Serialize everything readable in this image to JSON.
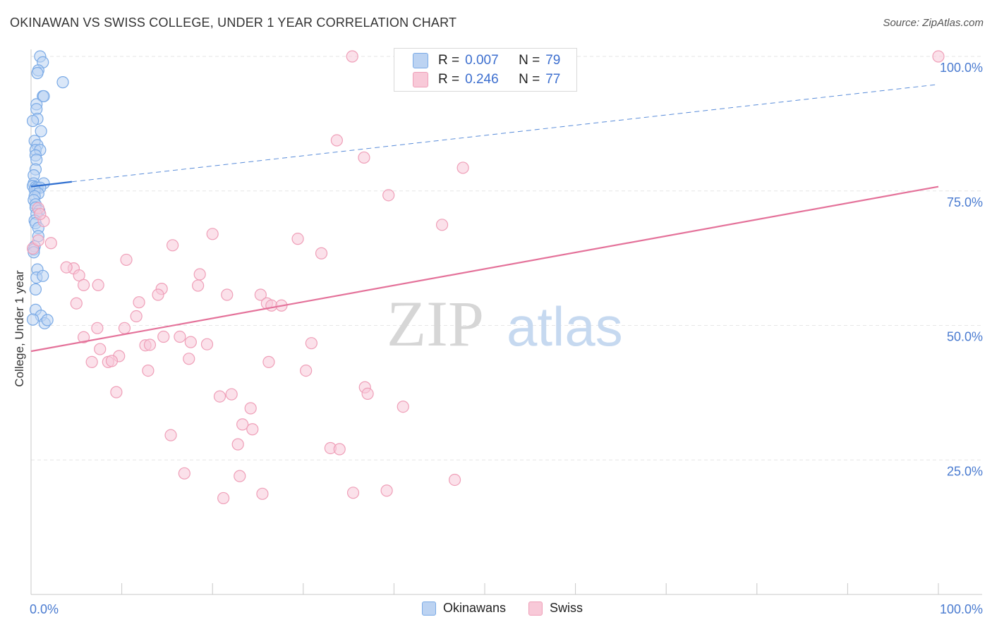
{
  "title": "OKINAWAN VS SWISS COLLEGE, UNDER 1 YEAR CORRELATION CHART",
  "source": "Source: ZipAtlas.com",
  "watermark": {
    "zip": "ZIP",
    "atlas": "atlas"
  },
  "legend": {
    "r_label": "R =",
    "n_label": "N =",
    "series": [
      {
        "name": "Okinawans",
        "r": "0.007",
        "n": "79",
        "color": "#7aaae6",
        "fill": "#bcd3f2"
      },
      {
        "name": "Swiss",
        "r": "0.246",
        "n": "77",
        "color": "#ef9fb8",
        "fill": "#f8c9d8"
      }
    ]
  },
  "chart_data": {
    "type": "scatter",
    "title": "OKINAWAN VS SWISS COLLEGE, UNDER 1 YEAR CORRELATION CHART",
    "xlabel": "",
    "ylabel": "College, Under 1 year",
    "xlim": [
      0,
      100
    ],
    "ylim": [
      0,
      100
    ],
    "x_tick_labels": [
      "0.0%",
      "100.0%"
    ],
    "y_tick_labels": [
      "100.0%",
      "75.0%",
      "50.0%",
      "25.0%"
    ],
    "y_ticks": [
      100,
      75,
      50,
      25
    ],
    "grid": true,
    "series": [
      {
        "name": "Okinawans",
        "color": "#5b8fd9",
        "trend": {
          "x": [
            0,
            4.5
          ],
          "y": [
            75.8,
            76.7
          ],
          "extended_to": [
            100,
            94.8
          ],
          "style": "solid-then-dashed",
          "color": "#2f6fd0"
        },
        "points": [
          [
            1.0,
            100.0
          ],
          [
            1.3,
            98.9
          ],
          [
            0.8,
            97.4
          ],
          [
            0.7,
            96.9
          ],
          [
            3.5,
            95.2
          ],
          [
            1.3,
            92.6
          ],
          [
            1.4,
            92.6
          ],
          [
            0.6,
            91.1
          ],
          [
            0.6,
            90.2
          ],
          [
            0.7,
            88.4
          ],
          [
            0.2,
            88.0
          ],
          [
            1.1,
            86.1
          ],
          [
            0.4,
            84.3
          ],
          [
            0.7,
            83.5
          ],
          [
            0.5,
            82.6
          ],
          [
            1.0,
            82.6
          ],
          [
            0.5,
            81.6
          ],
          [
            0.6,
            80.8
          ],
          [
            0.5,
            79.0
          ],
          [
            0.3,
            77.9
          ],
          [
            1.4,
            76.4
          ],
          [
            0.3,
            76.4
          ],
          [
            0.2,
            75.9
          ],
          [
            0.5,
            75.7
          ],
          [
            0.7,
            75.6
          ],
          [
            1.0,
            75.6
          ],
          [
            0.4,
            75.2
          ],
          [
            0.8,
            74.5
          ],
          [
            0.4,
            74.0
          ],
          [
            0.3,
            73.3
          ],
          [
            0.5,
            72.5
          ],
          [
            0.5,
            71.9
          ],
          [
            0.9,
            71.3
          ],
          [
            0.6,
            70.7
          ],
          [
            0.4,
            69.5
          ],
          [
            0.5,
            69.0
          ],
          [
            0.8,
            68.1
          ],
          [
            0.8,
            66.6
          ],
          [
            0.4,
            64.7
          ],
          [
            0.3,
            64.1
          ],
          [
            0.3,
            63.6
          ],
          [
            0.7,
            60.4
          ],
          [
            0.6,
            58.9
          ],
          [
            1.3,
            59.2
          ],
          [
            0.5,
            56.7
          ],
          [
            0.5,
            52.9
          ],
          [
            1.1,
            51.8
          ],
          [
            1.5,
            50.4
          ],
          [
            1.8,
            51.0
          ],
          [
            0.2,
            51.1
          ]
        ]
      },
      {
        "name": "Swiss",
        "color": "#ea88a6",
        "trend": {
          "x": [
            0,
            100
          ],
          "y": [
            45.2,
            75.8
          ],
          "style": "solid",
          "color": "#e4729a"
        },
        "points": [
          [
            35.4,
            100.0
          ],
          [
            100.0,
            100.0
          ],
          [
            33.7,
            84.4
          ],
          [
            36.7,
            81.2
          ],
          [
            47.6,
            79.3
          ],
          [
            39.4,
            74.2
          ],
          [
            45.3,
            68.7
          ],
          [
            20.0,
            67.0
          ],
          [
            29.4,
            66.1
          ],
          [
            15.6,
            64.9
          ],
          [
            32.0,
            63.4
          ],
          [
            10.5,
            62.2
          ],
          [
            0.2,
            64.3
          ],
          [
            0.8,
            65.8
          ],
          [
            2.2,
            65.3
          ],
          [
            1.4,
            69.4
          ],
          [
            0.8,
            71.8
          ],
          [
            1.0,
            70.7
          ],
          [
            4.7,
            60.6
          ],
          [
            3.9,
            60.8
          ],
          [
            5.3,
            59.3
          ],
          [
            18.6,
            59.5
          ],
          [
            5.8,
            57.5
          ],
          [
            7.4,
            57.5
          ],
          [
            18.4,
            57.4
          ],
          [
            14.4,
            56.8
          ],
          [
            14.0,
            55.7
          ],
          [
            21.6,
            55.7
          ],
          [
            25.3,
            55.7
          ],
          [
            11.9,
            54.3
          ],
          [
            26.0,
            54.1
          ],
          [
            26.5,
            53.7
          ],
          [
            27.6,
            53.7
          ],
          [
            5.0,
            54.1
          ],
          [
            11.6,
            51.7
          ],
          [
            7.3,
            49.5
          ],
          [
            10.3,
            49.5
          ],
          [
            5.8,
            47.8
          ],
          [
            14.6,
            47.9
          ],
          [
            16.4,
            47.9
          ],
          [
            12.6,
            46.3
          ],
          [
            13.1,
            46.4
          ],
          [
            17.6,
            46.9
          ],
          [
            19.4,
            46.5
          ],
          [
            30.9,
            46.7
          ],
          [
            7.6,
            45.6
          ],
          [
            9.7,
            44.3
          ],
          [
            17.4,
            43.8
          ],
          [
            6.7,
            43.2
          ],
          [
            8.5,
            43.2
          ],
          [
            8.9,
            43.4
          ],
          [
            26.2,
            43.2
          ],
          [
            12.9,
            41.6
          ],
          [
            30.3,
            41.6
          ],
          [
            36.8,
            38.5
          ],
          [
            37.1,
            37.3
          ],
          [
            9.4,
            37.6
          ],
          [
            20.8,
            36.8
          ],
          [
            22.1,
            37.2
          ],
          [
            24.2,
            34.6
          ],
          [
            41.0,
            34.9
          ],
          [
            23.3,
            31.6
          ],
          [
            24.4,
            30.7
          ],
          [
            15.4,
            29.6
          ],
          [
            22.8,
            27.9
          ],
          [
            33.0,
            27.2
          ],
          [
            34.0,
            27.0
          ],
          [
            16.9,
            22.5
          ],
          [
            23.0,
            22.0
          ],
          [
            46.7,
            21.3
          ],
          [
            21.2,
            17.9
          ],
          [
            25.5,
            18.7
          ],
          [
            35.5,
            18.9
          ],
          [
            39.2,
            19.3
          ]
        ]
      }
    ]
  }
}
